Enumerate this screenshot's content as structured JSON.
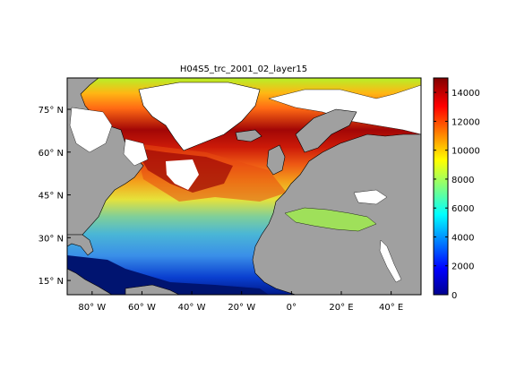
{
  "figure": {
    "title": "H04S5_trc_2001_02_layer15"
  },
  "map": {
    "extent": {
      "lon": [
        -90,
        52
      ],
      "lat": [
        10,
        86
      ]
    },
    "lon_ticks": [
      {
        "value": -80,
        "label": "80° W"
      },
      {
        "value": -60,
        "label": "60° W"
      },
      {
        "value": -40,
        "label": "40° W"
      },
      {
        "value": -20,
        "label": "20° W"
      },
      {
        "value": 0,
        "label": "0°"
      },
      {
        "value": 20,
        "label": "20° E"
      },
      {
        "value": 40,
        "label": "40° E"
      }
    ],
    "lat_ticks": [
      {
        "value": 75,
        "label": "75° N"
      },
      {
        "value": 60,
        "label": "60° N"
      },
      {
        "value": 45,
        "label": "45° N"
      },
      {
        "value": 30,
        "label": "30° N"
      },
      {
        "value": 15,
        "label": "15° N"
      }
    ],
    "colors": {
      "land": "#a0a0a0",
      "ice_nodata": "#ffffff",
      "coast": "#000000"
    }
  },
  "colorbar": {
    "range": [
      0,
      15000
    ],
    "colormap": "jet",
    "ticks": [
      {
        "value": 0,
        "label": "0"
      },
      {
        "value": 2000,
        "label": "2000"
      },
      {
        "value": 4000,
        "label": "4000"
      },
      {
        "value": 6000,
        "label": "6000"
      },
      {
        "value": 8000,
        "label": "8000"
      },
      {
        "value": 10000,
        "label": "10000"
      },
      {
        "value": 12000,
        "label": "12000"
      },
      {
        "value": 14000,
        "label": "14000"
      }
    ]
  }
}
